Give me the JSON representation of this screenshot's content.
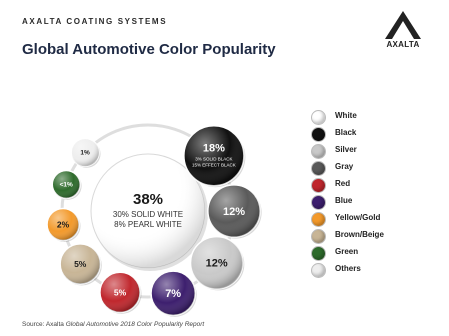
{
  "header": {
    "brand": "AXALTA COATING SYSTEMS",
    "title": "Global Automotive Color Popularity",
    "logo_text": "AXALTA"
  },
  "source": {
    "prefix": "Source: Axalta ",
    "italic": "Global Automotive 2018 Color Popularity Report"
  },
  "chart_data": {
    "type": "bubble",
    "title": "Global Automotive Color Popularity",
    "center": {
      "category": "White",
      "label": "38%",
      "value": 38,
      "sub_lines": [
        "30% SOLID WHITE",
        "8% PEARL WHITE"
      ],
      "color": "#ffffff"
    },
    "categories": [
      "Black",
      "Gray",
      "Silver",
      "Blue",
      "Red",
      "Brown/Beige",
      "Yellow/Gold",
      "Green",
      "Others"
    ],
    "values": [
      18,
      12,
      12,
      7,
      5,
      5,
      2,
      1,
      1
    ],
    "labels": [
      "18%",
      "12%",
      "12%",
      "7%",
      "5%",
      "5%",
      "2%",
      "<1%",
      "1%"
    ],
    "sub_labels": [
      [
        "3% SOLID BLACK",
        "15% EFFECT BLACK"
      ],
      [],
      [],
      [],
      [],
      [],
      [],
      [],
      []
    ],
    "colors": [
      "#111111",
      "#5a5a5a",
      "#c9c9c9",
      "#3d1f6e",
      "#c0272d",
      "#c8b596",
      "#f39a2c",
      "#2e6b2c",
      "#eeeeee"
    ],
    "legend": [
      {
        "label": "White",
        "color": "#ffffff"
      },
      {
        "label": "Black",
        "color": "#111111"
      },
      {
        "label": "Silver",
        "color": "#c9c9c9"
      },
      {
        "label": "Gray",
        "color": "#5a5a5a"
      },
      {
        "label": "Red",
        "color": "#c0272d"
      },
      {
        "label": "Blue",
        "color": "#3d1f6e"
      },
      {
        "label": "Yellow/Gold",
        "color": "#f39a2c"
      },
      {
        "label": "Brown/Beige",
        "color": "#c8b596"
      },
      {
        "label": "Green",
        "color": "#2e6b2c"
      },
      {
        "label": "Others",
        "color": "#eeeeee"
      }
    ],
    "legend_position": "right"
  }
}
